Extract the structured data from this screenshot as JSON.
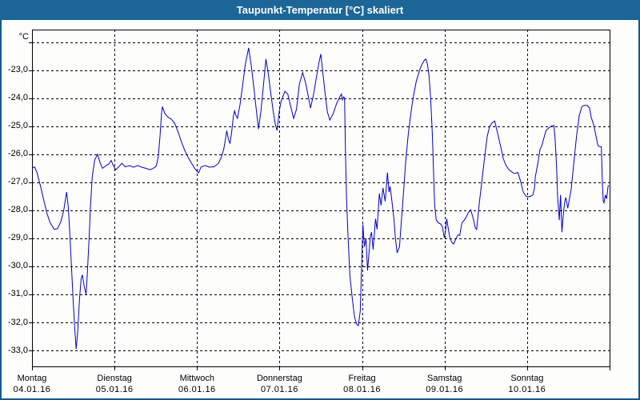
{
  "window": {
    "title": "Taupunkt-Temperatur [°C] skaliert"
  },
  "colors": {
    "titlebar_bg": "#1c6697",
    "titlebar_text": "#ffffff",
    "frame_border": "#16598c",
    "plot_background": "#fdfdfc",
    "plot_border": "#000000",
    "grid": "#000000",
    "line": "#0000c8",
    "axis_text": "#000000"
  },
  "chart_data": {
    "type": "line",
    "title": "Taupunkt-Temperatur [°C] skaliert",
    "ylabel": "°C",
    "xlabel": "",
    "legend": "none",
    "grid": "dashed",
    "ylim": [
      -33.57,
      -21.55
    ],
    "x_range_days": 7,
    "ygrid": [
      -22,
      -23,
      -24,
      -25,
      -26,
      -27,
      -28,
      -29,
      -30,
      -31,
      -32,
      -33
    ],
    "yticks": [
      {
        "value": -23,
        "label": "-23,0"
      },
      {
        "value": -24,
        "label": "-24,0"
      },
      {
        "value": -25,
        "label": "-25,0"
      },
      {
        "value": -26,
        "label": "-26,0"
      },
      {
        "value": -27,
        "label": "-27,0"
      },
      {
        "value": -28,
        "label": "-28,0"
      },
      {
        "value": -29,
        "label": "-29,0"
      },
      {
        "value": -30,
        "label": "-30,0"
      },
      {
        "value": -31,
        "label": "-31,0"
      },
      {
        "value": -32,
        "label": "-32,0"
      },
      {
        "value": -33,
        "label": "-33,0"
      }
    ],
    "x_days": [
      {
        "name": "Montag",
        "date": "04.01.16"
      },
      {
        "name": "Dienstag",
        "date": "05.01.16"
      },
      {
        "name": "Mittwoch",
        "date": "06.01.16"
      },
      {
        "name": "Donnerstag",
        "date": "07.01.16"
      },
      {
        "name": "Freitag",
        "date": "08.01.16"
      },
      {
        "name": "Samstag",
        "date": "09.01.16"
      },
      {
        "name": "Sonntag",
        "date": "10.01.16"
      }
    ],
    "series": [
      {
        "name": "Taupunkt-Temperatur",
        "color": "#0000c8",
        "points": [
          [
            0.0,
            -26.5
          ],
          [
            0.03,
            -26.45
          ],
          [
            0.06,
            -26.65
          ],
          [
            0.1,
            -27.1
          ],
          [
            0.14,
            -27.6
          ],
          [
            0.18,
            -28.1
          ],
          [
            0.22,
            -28.45
          ],
          [
            0.27,
            -28.68
          ],
          [
            0.31,
            -28.65
          ],
          [
            0.35,
            -28.4
          ],
          [
            0.385,
            -28.0
          ],
          [
            0.405,
            -27.6
          ],
          [
            0.42,
            -27.35
          ],
          [
            0.44,
            -27.9
          ],
          [
            0.46,
            -28.9
          ],
          [
            0.48,
            -30.1
          ],
          [
            0.5,
            -31.3
          ],
          [
            0.52,
            -32.3
          ],
          [
            0.535,
            -32.95
          ],
          [
            0.555,
            -32.3
          ],
          [
            0.575,
            -31.2
          ],
          [
            0.595,
            -30.45
          ],
          [
            0.61,
            -30.3
          ],
          [
            0.635,
            -30.75
          ],
          [
            0.655,
            -31.0
          ],
          [
            0.67,
            -30.3
          ],
          [
            0.69,
            -29.1
          ],
          [
            0.71,
            -27.8
          ],
          [
            0.73,
            -26.8
          ],
          [
            0.76,
            -26.2
          ],
          [
            0.795,
            -26.0
          ],
          [
            0.825,
            -26.3
          ],
          [
            0.855,
            -26.5
          ],
          [
            0.89,
            -26.42
          ],
          [
            0.93,
            -26.35
          ],
          [
            0.96,
            -26.22
          ],
          [
            0.985,
            -26.4
          ],
          [
            1.015,
            -26.55
          ],
          [
            1.05,
            -26.45
          ],
          [
            1.09,
            -26.32
          ],
          [
            1.13,
            -26.45
          ],
          [
            1.18,
            -26.4
          ],
          [
            1.23,
            -26.46
          ],
          [
            1.28,
            -26.4
          ],
          [
            1.33,
            -26.46
          ],
          [
            1.38,
            -26.5
          ],
          [
            1.43,
            -26.55
          ],
          [
            1.47,
            -26.5
          ],
          [
            1.505,
            -26.42
          ],
          [
            1.53,
            -26.1
          ],
          [
            1.55,
            -25.4
          ],
          [
            1.57,
            -24.55
          ],
          [
            1.58,
            -24.3
          ],
          [
            1.61,
            -24.55
          ],
          [
            1.65,
            -24.68
          ],
          [
            1.69,
            -24.75
          ],
          [
            1.73,
            -24.9
          ],
          [
            1.77,
            -25.2
          ],
          [
            1.81,
            -25.55
          ],
          [
            1.85,
            -25.85
          ],
          [
            1.89,
            -26.1
          ],
          [
            1.93,
            -26.3
          ],
          [
            1.97,
            -26.5
          ],
          [
            2.005,
            -26.62
          ],
          [
            2.02,
            -26.66
          ],
          [
            2.05,
            -26.45
          ],
          [
            2.1,
            -26.4
          ],
          [
            2.15,
            -26.46
          ],
          [
            2.21,
            -26.44
          ],
          [
            2.26,
            -26.32
          ],
          [
            2.295,
            -26.1
          ],
          [
            2.325,
            -25.8
          ],
          [
            2.345,
            -25.45
          ],
          [
            2.36,
            -25.16
          ],
          [
            2.38,
            -25.45
          ],
          [
            2.4,
            -25.62
          ],
          [
            2.42,
            -25.2
          ],
          [
            2.44,
            -24.65
          ],
          [
            2.455,
            -24.45
          ],
          [
            2.47,
            -24.6
          ],
          [
            2.49,
            -24.72
          ],
          [
            2.52,
            -24.25
          ],
          [
            2.55,
            -23.6
          ],
          [
            2.585,
            -22.8
          ],
          [
            2.625,
            -22.2
          ],
          [
            2.66,
            -22.9
          ],
          [
            2.695,
            -23.8
          ],
          [
            2.725,
            -24.6
          ],
          [
            2.745,
            -25.1
          ],
          [
            2.775,
            -24.45
          ],
          [
            2.805,
            -23.55
          ],
          [
            2.835,
            -22.6
          ],
          [
            2.865,
            -23.15
          ],
          [
            2.895,
            -23.85
          ],
          [
            2.925,
            -24.5
          ],
          [
            2.95,
            -24.95
          ],
          [
            2.97,
            -25.15
          ],
          [
            3.0,
            -24.4
          ],
          [
            3.02,
            -24.1
          ],
          [
            3.045,
            -23.9
          ],
          [
            3.065,
            -23.75
          ],
          [
            3.1,
            -23.85
          ],
          [
            3.14,
            -24.35
          ],
          [
            3.17,
            -24.72
          ],
          [
            3.205,
            -24.4
          ],
          [
            3.24,
            -23.5
          ],
          [
            3.28,
            -23.08
          ],
          [
            3.32,
            -23.5
          ],
          [
            3.35,
            -23.95
          ],
          [
            3.375,
            -24.35
          ],
          [
            3.41,
            -23.9
          ],
          [
            3.45,
            -23.2
          ],
          [
            3.48,
            -22.7
          ],
          [
            3.5,
            -22.42
          ],
          [
            3.525,
            -23.1
          ],
          [
            3.555,
            -23.9
          ],
          [
            3.58,
            -24.5
          ],
          [
            3.61,
            -24.78
          ],
          [
            3.65,
            -24.55
          ],
          [
            3.69,
            -24.2
          ],
          [
            3.73,
            -23.95
          ],
          [
            3.75,
            -23.85
          ],
          [
            3.762,
            -24.05
          ],
          [
            3.778,
            -23.95
          ],
          [
            3.788,
            -24.0
          ],
          [
            3.8,
            -26.0
          ],
          [
            3.812,
            -27.6
          ],
          [
            3.83,
            -28.9
          ],
          [
            3.852,
            -30.3
          ],
          [
            3.88,
            -31.1
          ],
          [
            3.908,
            -31.8
          ],
          [
            3.932,
            -32.05
          ],
          [
            3.955,
            -32.12
          ],
          [
            3.978,
            -31.6
          ],
          [
            3.995,
            -29.9
          ],
          [
            4.01,
            -28.5
          ],
          [
            4.028,
            -29.3
          ],
          [
            4.048,
            -29.0
          ],
          [
            4.066,
            -30.15
          ],
          [
            4.1,
            -28.95
          ],
          [
            4.115,
            -28.78
          ],
          [
            4.134,
            -29.4
          ],
          [
            4.163,
            -28.3
          ],
          [
            4.182,
            -28.68
          ],
          [
            4.21,
            -27.4
          ],
          [
            4.23,
            -27.82
          ],
          [
            4.253,
            -27.2
          ],
          [
            4.28,
            -27.68
          ],
          [
            4.308,
            -26.65
          ],
          [
            4.327,
            -27.35
          ],
          [
            4.34,
            -27.15
          ],
          [
            4.357,
            -27.55
          ],
          [
            4.386,
            -28.3
          ],
          [
            4.405,
            -29.0
          ],
          [
            4.425,
            -29.52
          ],
          [
            4.454,
            -29.3
          ],
          [
            4.473,
            -28.5
          ],
          [
            4.502,
            -27.4
          ],
          [
            4.531,
            -26.2
          ],
          [
            4.56,
            -25.3
          ],
          [
            4.589,
            -24.6
          ],
          [
            4.618,
            -24.0
          ],
          [
            4.657,
            -23.4
          ],
          [
            4.696,
            -23.0
          ],
          [
            4.725,
            -22.8
          ],
          [
            4.754,
            -22.65
          ],
          [
            4.773,
            -22.6
          ],
          [
            4.793,
            -22.8
          ],
          [
            4.812,
            -23.2
          ],
          [
            4.831,
            -24.0
          ],
          [
            4.851,
            -25.2
          ],
          [
            4.865,
            -26.5
          ],
          [
            4.88,
            -27.8
          ],
          [
            4.899,
            -28.35
          ],
          [
            4.928,
            -28.45
          ],
          [
            4.957,
            -28.5
          ],
          [
            4.976,
            -28.6
          ],
          [
            4.996,
            -28.97
          ],
          [
            5.01,
            -28.8
          ],
          [
            5.026,
            -28.3
          ],
          [
            5.047,
            -28.7
          ],
          [
            5.065,
            -29.0
          ],
          [
            5.09,
            -29.15
          ],
          [
            5.11,
            -29.2
          ],
          [
            5.14,
            -29.0
          ],
          [
            5.162,
            -28.88
          ],
          [
            5.183,
            -28.9
          ],
          [
            5.21,
            -28.45
          ],
          [
            5.237,
            -28.35
          ],
          [
            5.259,
            -28.26
          ],
          [
            5.285,
            -28.1
          ],
          [
            5.317,
            -27.98
          ],
          [
            5.348,
            -28.3
          ],
          [
            5.372,
            -28.62
          ],
          [
            5.389,
            -28.68
          ],
          [
            5.421,
            -27.75
          ],
          [
            5.453,
            -26.95
          ],
          [
            5.486,
            -26.1
          ],
          [
            5.518,
            -25.35
          ],
          [
            5.547,
            -25.0
          ],
          [
            5.576,
            -24.88
          ],
          [
            5.608,
            -24.81
          ],
          [
            5.647,
            -25.3
          ],
          [
            5.68,
            -25.73
          ],
          [
            5.712,
            -26.16
          ],
          [
            5.744,
            -26.4
          ],
          [
            5.777,
            -26.54
          ],
          [
            5.809,
            -26.62
          ],
          [
            5.847,
            -26.69
          ],
          [
            5.889,
            -26.65
          ],
          [
            5.922,
            -26.97
          ],
          [
            5.954,
            -27.35
          ],
          [
            5.986,
            -27.49
          ],
          [
            6.012,
            -27.52
          ],
          [
            6.041,
            -27.5
          ],
          [
            6.07,
            -27.45
          ],
          [
            6.09,
            -27.2
          ],
          [
            6.1,
            -26.8
          ],
          [
            6.131,
            -26.3
          ],
          [
            6.157,
            -25.82
          ],
          [
            6.18,
            -25.68
          ],
          [
            6.206,
            -25.4
          ],
          [
            6.228,
            -25.16
          ],
          [
            6.264,
            -25.05
          ],
          [
            6.293,
            -25.0
          ],
          [
            6.325,
            -24.97
          ],
          [
            6.341,
            -25.5
          ],
          [
            6.358,
            -26.5
          ],
          [
            6.37,
            -27.5
          ],
          [
            6.39,
            -28.35
          ],
          [
            6.406,
            -27.45
          ],
          [
            6.422,
            -28.78
          ],
          [
            6.438,
            -28.2
          ],
          [
            6.455,
            -27.72
          ],
          [
            6.47,
            -27.54
          ],
          [
            6.493,
            -27.92
          ],
          [
            6.535,
            -27.25
          ],
          [
            6.567,
            -26.3
          ],
          [
            6.6,
            -25.35
          ],
          [
            6.632,
            -24.63
          ],
          [
            6.664,
            -24.3
          ],
          [
            6.697,
            -24.25
          ],
          [
            6.729,
            -24.26
          ],
          [
            6.758,
            -24.35
          ],
          [
            6.777,
            -24.68
          ],
          [
            6.809,
            -24.97
          ],
          [
            6.842,
            -25.45
          ],
          [
            6.858,
            -25.69
          ],
          [
            6.874,
            -25.72
          ],
          [
            6.9,
            -25.73
          ],
          [
            6.913,
            -27.06
          ],
          [
            6.923,
            -27.68
          ],
          [
            6.932,
            -27.73
          ],
          [
            6.949,
            -27.45
          ],
          [
            6.964,
            -27.59
          ],
          [
            6.981,
            -27.16
          ],
          [
            6.99,
            -27.1
          ]
        ]
      }
    ]
  }
}
